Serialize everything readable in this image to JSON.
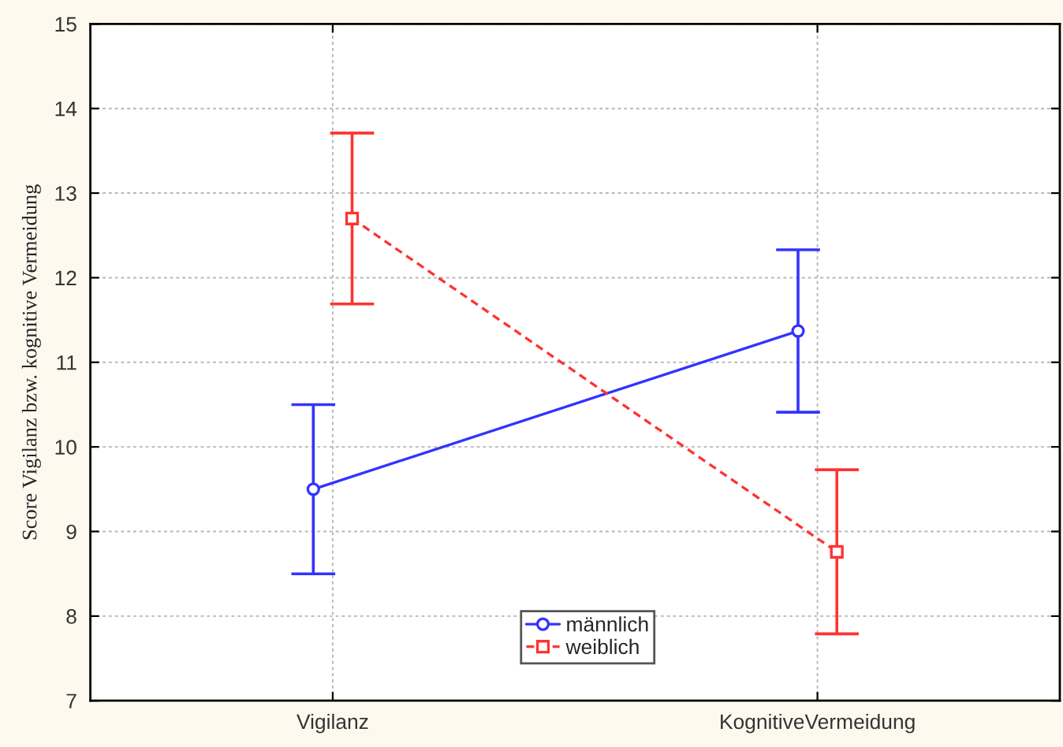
{
  "chart_data": {
    "type": "line",
    "ylabel": "Score Vigilanz bzw. kognitive Vermeidung",
    "categories": [
      "Vigilanz",
      "KognitiveVermeidung"
    ],
    "series": [
      {
        "name": "männlich",
        "color": "#3333ff",
        "values": [
          9.5,
          11.37
        ],
        "errors": [
          1.0,
          0.96
        ],
        "marker": "circle",
        "line_style": "solid"
      },
      {
        "name": "weiblich",
        "color": "#ff3333",
        "values": [
          12.7,
          8.76
        ],
        "errors": [
          1.01,
          0.97
        ],
        "marker": "square",
        "line_style": "dashed"
      }
    ],
    "ylim": [
      7,
      15
    ],
    "yticks": [
      7,
      8,
      9,
      10,
      11,
      12,
      13,
      14,
      15
    ],
    "grid": true,
    "legend": "bottom"
  }
}
